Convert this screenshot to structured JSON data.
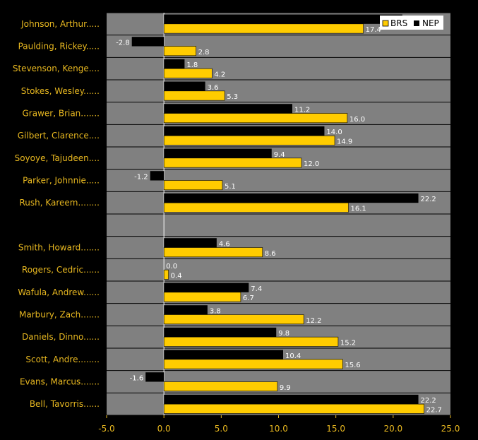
{
  "chart_data": {
    "type": "bar",
    "orientation": "horizontal",
    "categories": [
      "Johnson, Arthur.....",
      "Paulding, Rickey.....",
      "Stevenson, Kenge....",
      "Stokes, Wesley......",
      "Grawer, Brian.......",
      "Gilbert, Clarence....",
      "Soyoye, Tajudeen....",
      "Parker, Johnnie.....",
      "Rush, Kareem........",
      "",
      "Smith, Howard.......",
      "Rogers, Cedric......",
      "Wafula, Andrew......",
      "Marbury, Zach.......",
      "Daniels, Dinno......",
      "Scott, Andre........",
      "Evans, Marcus.......",
      "Bell, Tavorris......"
    ],
    "series": [
      {
        "name": "NEP",
        "color": "#000000",
        "values": [
          20.8,
          -2.8,
          1.8,
          3.6,
          11.2,
          14.0,
          9.4,
          -1.2,
          22.2,
          null,
          4.6,
          0.0,
          7.4,
          3.8,
          9.8,
          10.4,
          -1.6,
          22.2
        ],
        "labels": [
          "",
          "-2.8",
          "1.8",
          "3.6",
          "11.2",
          "14.0",
          "9.4",
          "-1.2",
          "22.2",
          "",
          "4.6",
          "0.0",
          "7.4",
          "3.8",
          "9.8",
          "10.4",
          "-1.6",
          "22.2"
        ]
      },
      {
        "name": "BRS",
        "color": "#ffcc00",
        "values": [
          17.4,
          2.8,
          4.2,
          5.3,
          16.0,
          14.9,
          12.0,
          5.1,
          16.1,
          null,
          8.6,
          0.4,
          6.7,
          12.2,
          15.2,
          15.6,
          9.9,
          22.7
        ],
        "labels": [
          "17.4",
          "2.8",
          "4.2",
          "5.3",
          "16.0",
          "14.9",
          "12.0",
          "5.1",
          "16.1",
          "",
          "8.6",
          "0.4",
          "6.7",
          "12.2",
          "15.2",
          "15.6",
          "9.9",
          "22.7"
        ]
      }
    ],
    "xlim": [
      -5.0,
      25.0
    ],
    "xticks": [
      "-5.0",
      "0.0",
      "5.0",
      "10.0",
      "15.0",
      "20.0",
      "25.0"
    ],
    "legend": {
      "position": "top-right",
      "entries": [
        "BRS",
        "NEP"
      ]
    },
    "colors": {
      "background": "#000000",
      "plot": "#808080",
      "grid": "#000000",
      "zero": "#ffffff",
      "label": "#e8b820",
      "legend_bg": "#ffffff"
    }
  }
}
